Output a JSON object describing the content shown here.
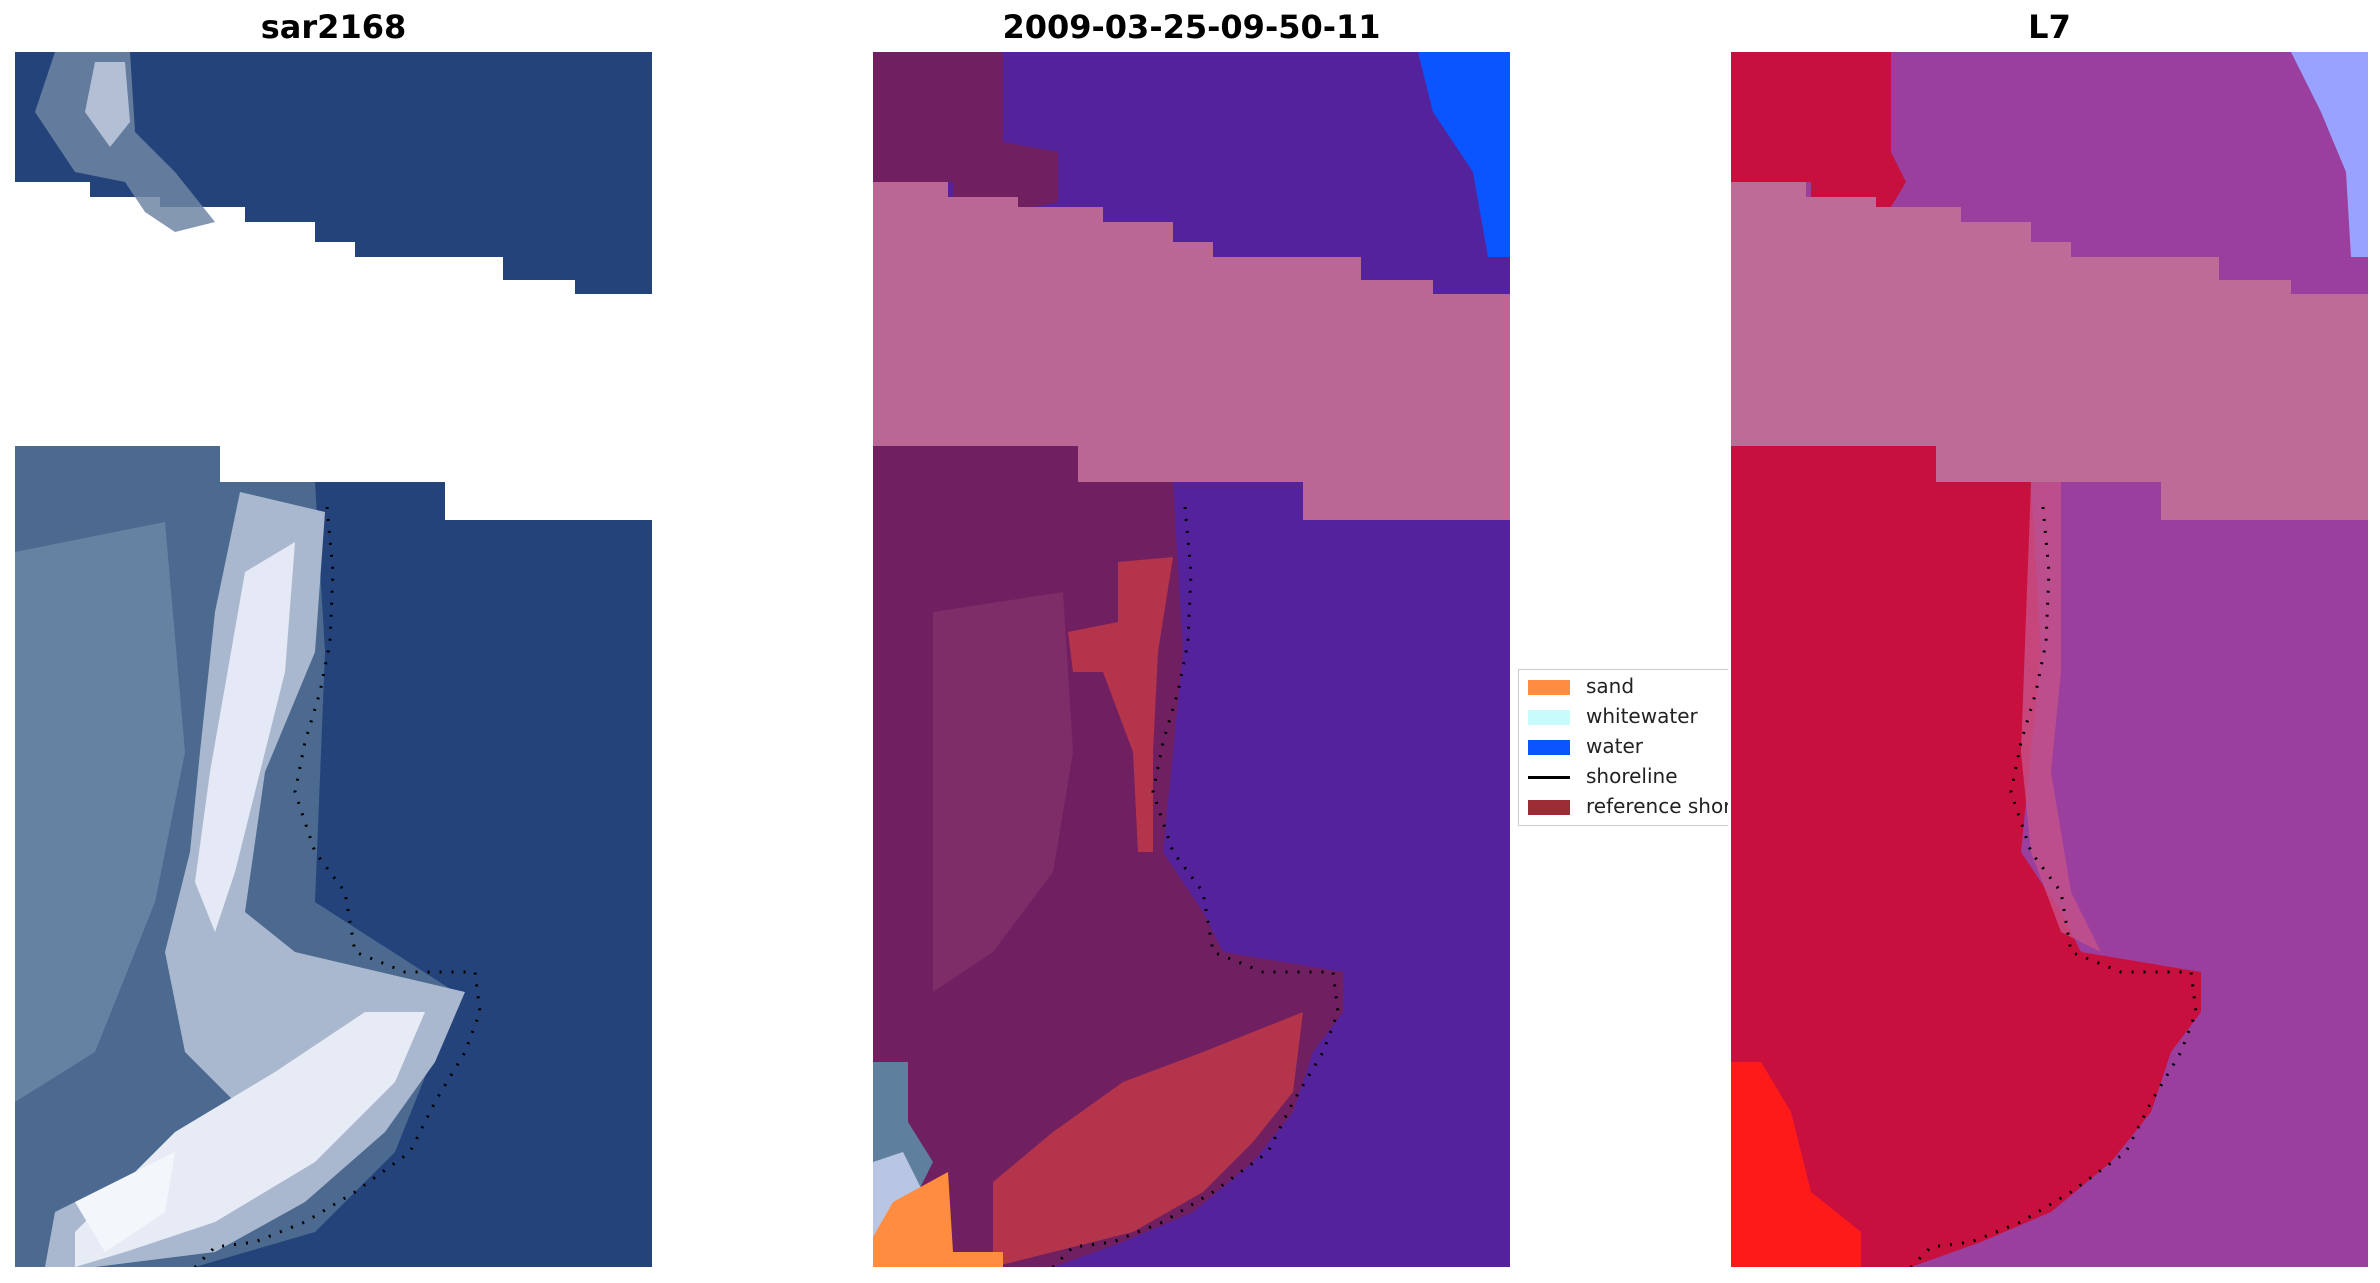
{
  "panels": [
    {
      "title": "sar2168"
    },
    {
      "title": "2009-03-25-09-50-11"
    },
    {
      "title": "L7"
    }
  ],
  "legend": {
    "items": [
      {
        "label": "sand",
        "color": "#ff8c3f"
      },
      {
        "label": "whitewater",
        "color": "#c8fbfb"
      },
      {
        "label": "water",
        "color": "#0a55ff"
      },
      {
        "label": "shoreline",
        "color": "#000000"
      },
      {
        "label": "reference shoreline",
        "color": "#9b2b35"
      }
    ]
  },
  "colors": {
    "rgb_water": "#24437a",
    "rgb_cloud": "#e6ebf6",
    "classified_water": "#54229a",
    "classified_land": "#702060",
    "classified_band": "#bb6795",
    "classified_red": "#b4344c",
    "classified_bright_water": "#0a55ff",
    "falsecolor_land": "#c8103e",
    "falsecolor_water": "#9a3f9e",
    "falsecolor_band": "#bd6b97",
    "falsecolor_bright": "#ff1a1a",
    "falsecolor_lightwater": "#9aa2ff"
  }
}
